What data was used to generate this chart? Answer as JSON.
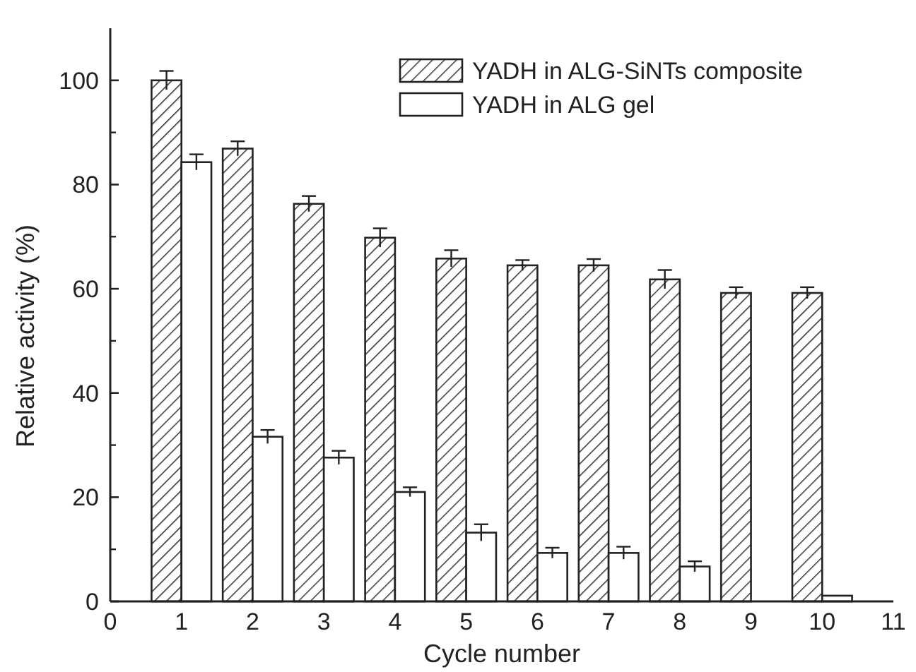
{
  "chart_data": {
    "type": "bar",
    "xlabel": "Cycle number",
    "ylabel": "Relative activity (%)",
    "x": [
      1,
      2,
      3,
      4,
      5,
      6,
      7,
      8,
      9,
      10
    ],
    "xlim": [
      0,
      11
    ],
    "xticks": [
      0,
      1,
      2,
      3,
      4,
      5,
      6,
      7,
      8,
      9,
      10,
      11
    ],
    "ylim": [
      0,
      110
    ],
    "yticks": [
      0,
      20,
      40,
      60,
      80,
      100
    ],
    "grid": false,
    "legend": "top right",
    "series": [
      {
        "name": "YADH in ALG-SiNTs composite",
        "color": "#222222",
        "values": [
          100,
          86.9,
          76.3,
          69.8,
          65.8,
          64.5,
          64.5,
          61.8,
          59.2,
          59.2
        ],
        "errors": [
          1.8,
          1.4,
          1.5,
          1.8,
          1.6,
          1.0,
          1.2,
          1.8,
          1.1,
          1.1
        ]
      },
      {
        "name": "YADH in ALG gel",
        "color": "#ffffff",
        "values": [
          84.3,
          31.6,
          27.6,
          21.0,
          13.2,
          9.3,
          9.3,
          6.7,
          null,
          1.1
        ],
        "errors": [
          1.5,
          1.3,
          1.3,
          0.9,
          1.6,
          1.0,
          1.2,
          1.0,
          null,
          null
        ]
      }
    ]
  }
}
